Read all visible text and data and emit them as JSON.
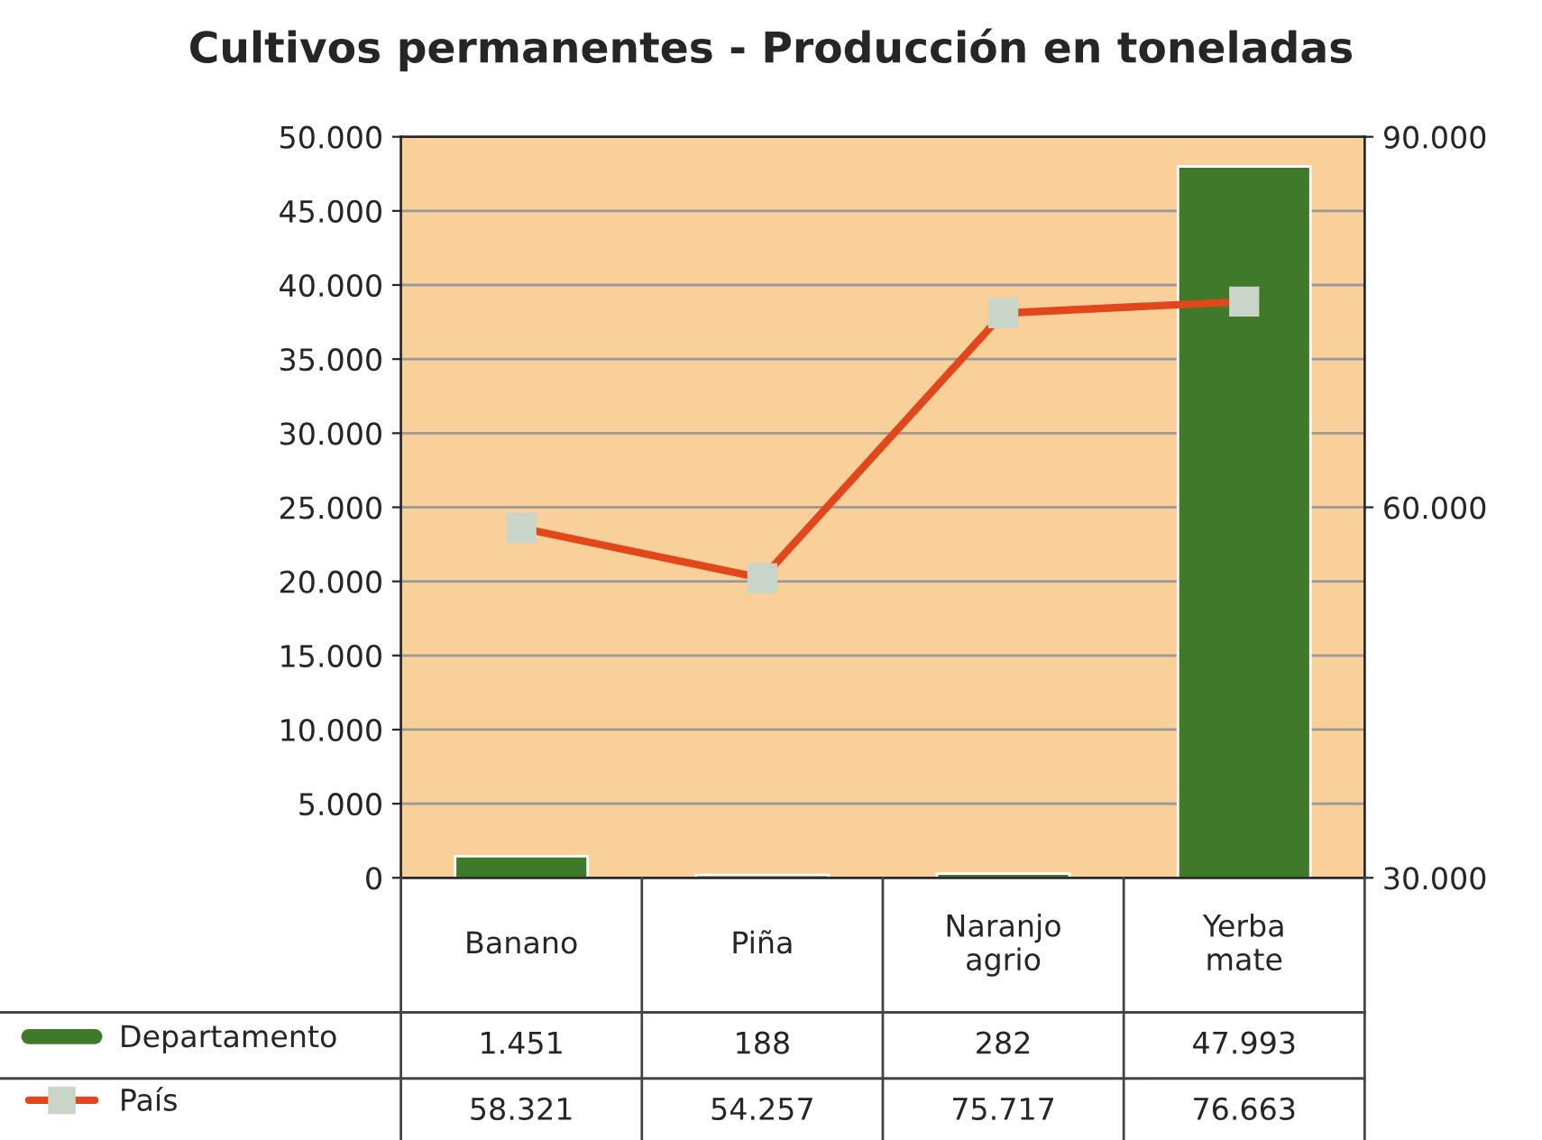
{
  "chart_data": {
    "type": "bar",
    "title": "Cultivos permanentes - Producción en toneladas",
    "categories": [
      "Banano",
      "Piña",
      "Naranjo agrio",
      "Yerba mate"
    ],
    "series": [
      {
        "name": "Departamento",
        "color": "#3f7a2a",
        "values": [
          1451,
          188,
          282,
          47993
        ],
        "value_labels": [
          "1.451",
          "188",
          "282",
          "47.993"
        ]
      },
      {
        "name": "País",
        "type": "line",
        "axis": "y2",
        "color": "#e2461b",
        "marker": "square",
        "values": [
          58321,
          54257,
          75717,
          76663
        ],
        "value_labels": [
          "58.321",
          "54.257",
          "75.717",
          "76.663"
        ]
      }
    ],
    "ylim": [
      0,
      50000
    ],
    "yticks": [
      {
        "value": 0,
        "label": "0"
      },
      {
        "value": 5000,
        "label": "5.000"
      },
      {
        "value": 10000,
        "label": "10.000"
      },
      {
        "value": 15000,
        "label": "15.000"
      },
      {
        "value": 20000,
        "label": "20.000"
      },
      {
        "value": 25000,
        "label": "25.000"
      },
      {
        "value": 30000,
        "label": "30.000"
      },
      {
        "value": 35000,
        "label": "35.000"
      },
      {
        "value": 40000,
        "label": "40.000"
      },
      {
        "value": 45000,
        "label": "45.000"
      },
      {
        "value": 50000,
        "label": "50.000"
      }
    ],
    "y2lim": [
      30000,
      90000
    ],
    "y2ticks": [
      {
        "value": 30000,
        "label": "30.000"
      },
      {
        "value": 60000,
        "label": "60.000"
      },
      {
        "value": 90000,
        "label": "90.000"
      }
    ],
    "grid": "y",
    "legend": "bottom left"
  }
}
